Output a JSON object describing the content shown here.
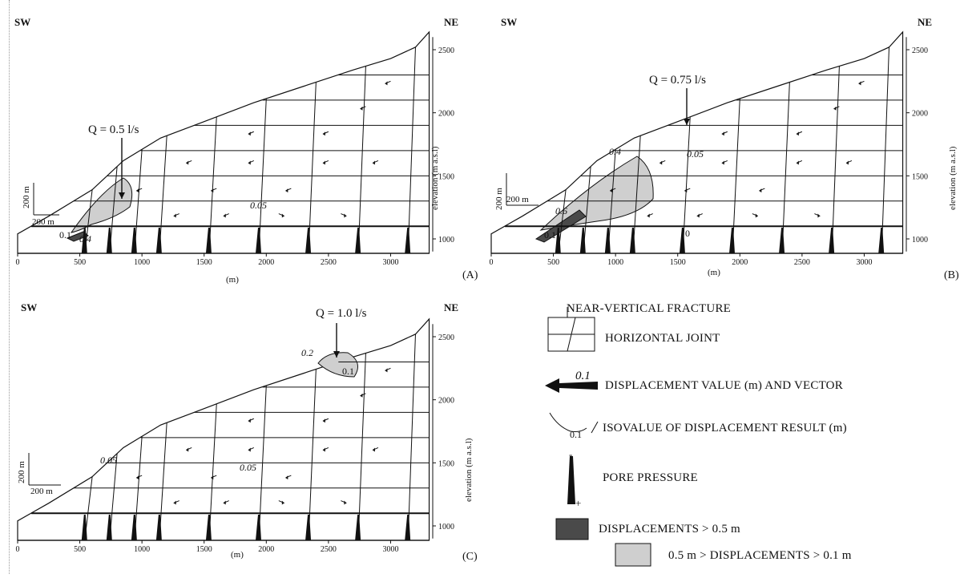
{
  "panels": [
    {
      "id": "A",
      "sw": "SW",
      "ne": "NE",
      "q_label": "Q = 0.5 l/s",
      "panel_label": "(A)",
      "x_unit": "(m)",
      "x_ticks": [
        "0",
        "500",
        "1000",
        "1500",
        "2000",
        "2500",
        "3000"
      ],
      "y_ticks": [
        "1000",
        "1500",
        "2000",
        "2500"
      ],
      "y_label": "elevation (m a.s.l)",
      "scale_v": "200 m",
      "scale_h": "200 m",
      "iso_labels": [
        "0.4",
        "0.05",
        "0.1"
      ]
    },
    {
      "id": "B",
      "sw": "SW",
      "ne": "NE",
      "q_label": "Q = 0.75 l/s",
      "panel_label": "(B)",
      "x_unit": "(m)",
      "x_ticks": [
        "0",
        "500",
        "1000",
        "1500",
        "2000",
        "2500",
        "3000"
      ],
      "y_ticks": [
        "1000",
        "1500",
        "2000",
        "2500"
      ],
      "y_label": "elevation (m a.s.l)",
      "scale_v": "200 m",
      "scale_h": "200 m",
      "iso_labels": [
        "0.4",
        "0.05",
        "0.6",
        "0.1",
        "0"
      ]
    },
    {
      "id": "C",
      "sw": "SW",
      "ne": "NE",
      "q_label": "Q = 1.0 l/s",
      "panel_label": "(C)",
      "x_unit": "(m)",
      "x_ticks": [
        "0",
        "500",
        "1000",
        "1500",
        "2000",
        "2500",
        "3000"
      ],
      "y_ticks": [
        "1000",
        "1500",
        "2000",
        "2500"
      ],
      "y_label": "elevation (m a.s.l)",
      "scale_v": "200 m",
      "scale_h": "200 m",
      "iso_labels": [
        "0.2",
        "0.1",
        "0.05",
        "0.05"
      ]
    }
  ],
  "legend": {
    "fracture": "NEAR-VERTICAL FRACTURE",
    "joint": "HORIZONTAL JOINT",
    "disp_value": "0.1",
    "displacement": "DISPLACEMENT VALUE (m) AND VECTOR",
    "iso_value": "0.1",
    "isovalue": "ISOVALUE OF DISPLACEMENT RESULT (m)",
    "pore_minus": "-",
    "pore_plus": "+",
    "pore": "PORE PRESSURE",
    "dark": "DISPLACEMENTS > 0.5 m",
    "light": "0.5 m > DISPLACEMENTS > 0.1 m"
  },
  "colors": {
    "line": "#111111",
    "dark_zone": "#4a4a4a",
    "light_zone": "#cfcfcf"
  }
}
